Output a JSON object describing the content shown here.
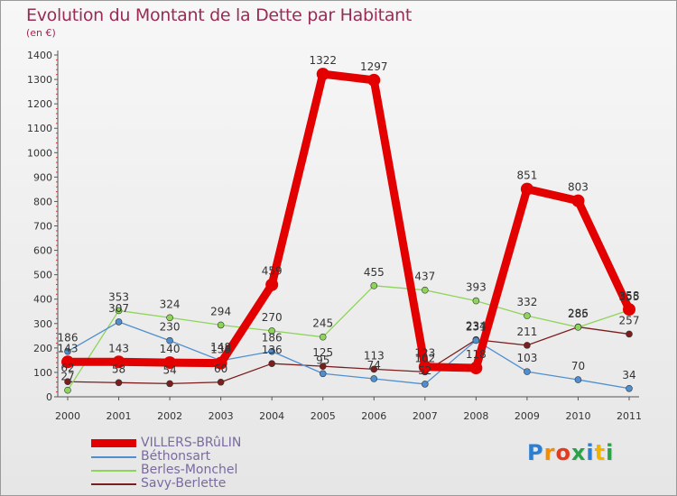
{
  "title": "Evolution du Montant de la Dette par Habitant",
  "unit": "(en €)",
  "logo": "Proxiti",
  "chart_data": {
    "type": "line",
    "title": "Evolution du Montant de la Dette par Habitant",
    "ylabel": "(en €)",
    "xlabel": "",
    "ylim": [
      0,
      1400
    ],
    "yticks": [
      0,
      100,
      200,
      300,
      400,
      500,
      600,
      700,
      800,
      900,
      1000,
      1100,
      1200,
      1300,
      1400
    ],
    "grid": false,
    "legend": "bottom-left",
    "categories": [
      "2000",
      "2001",
      "2002",
      "2003",
      "2004",
      "2005",
      "2006",
      "2007",
      "2008",
      "2009",
      "2010",
      "2011"
    ],
    "series": [
      {
        "name": "VILLERS-BRûLIN",
        "color": "#e30000",
        "values": [
          143,
          143,
          140,
          138,
          459,
          1322,
          1297,
          123,
          118,
          851,
          803,
          358
        ]
      },
      {
        "name": "Béthonsart",
        "color": "#4f8fcf",
        "values": [
          186,
          307,
          230,
          148,
          186,
          95,
          74,
          52,
          231,
          103,
          70,
          34
        ]
      },
      {
        "name": "Berles-Monchel",
        "color": "#8fd45a",
        "values": [
          27,
          353,
          324,
          294,
          270,
          245,
          455,
          437,
          393,
          332,
          285,
          355
        ]
      },
      {
        "name": "Savy-Berlette",
        "color": "#7a1e1e",
        "values": [
          62,
          58,
          54,
          60,
          136,
          125,
          113,
          102,
          234,
          211,
          286,
          257
        ]
      }
    ]
  }
}
